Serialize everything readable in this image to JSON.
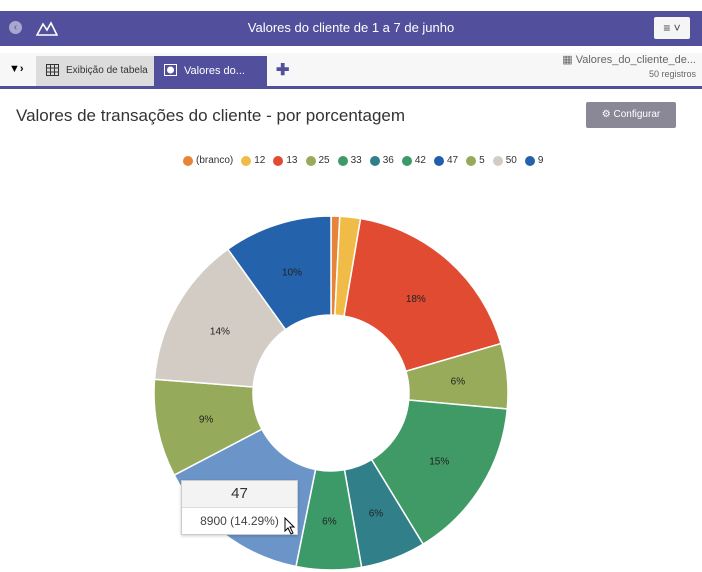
{
  "header": {
    "title": "Valores do cliente de 1 a 7 de junho",
    "menu_icon": "hamburger-icon"
  },
  "tabs": [
    {
      "label": "Exibição de tabela"
    },
    {
      "label": "Valores do..."
    }
  ],
  "source": {
    "name": "Valores_do_cliente_de...",
    "records": "50 registros"
  },
  "page": {
    "title": "Valores de transações do cliente - por porcentagem",
    "configure": "Configurar"
  },
  "chart_data": {
    "type": "pie",
    "donut": true,
    "title": "Valores de transações do cliente - por porcentagem",
    "legend_position": "top",
    "slices": [
      {
        "label": "(branco)",
        "value": 0.8,
        "color": "#e8833a",
        "text": ""
      },
      {
        "label": "12",
        "value": 1.9,
        "color": "#f0bc47",
        "text": ""
      },
      {
        "label": "13",
        "value": 18,
        "color": "#e04b32",
        "text": "18%"
      },
      {
        "label": "25",
        "value": 6,
        "color": "#97ab5b",
        "text": "6%"
      },
      {
        "label": "33",
        "value": 15,
        "color": "#3f9a66",
        "text": "15%"
      },
      {
        "label": "36",
        "value": 6,
        "color": "#317f88",
        "text": "6%"
      },
      {
        "label": "42",
        "value": 6,
        "color": "#3c9a68",
        "text": "6%"
      },
      {
        "label": "47",
        "value": 14.29,
        "color": "#1f5fad",
        "hover_color": "#6b95c9",
        "text": "14%"
      },
      {
        "label": "5",
        "value": 9,
        "color": "#95aa5a",
        "text": "9%"
      },
      {
        "label": "50",
        "value": 14,
        "color": "#d3ccc4",
        "text": "14%"
      },
      {
        "label": "9",
        "value": 10,
        "color": "#2462ab",
        "text": "10%"
      }
    ],
    "tooltip": {
      "label": "47",
      "value": "8900 (14.29%)"
    }
  }
}
